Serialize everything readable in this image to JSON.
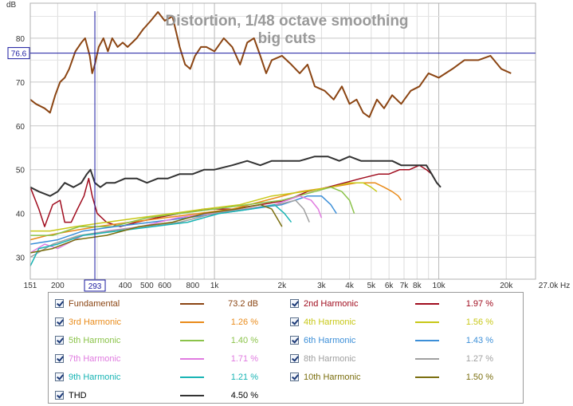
{
  "chart_data": {
    "type": "line",
    "title": "Distortion, 1/48 octave smoothing",
    "subtitle": "big cuts",
    "ylabel": "dB",
    "x_unit": "Hz",
    "x_scale": "log",
    "xlim": [
      151,
      27000
    ],
    "ylim": [
      25,
      88
    ],
    "grid": true,
    "x_ticks": [
      {
        "v": 151,
        "label": "151"
      },
      {
        "v": 200,
        "label": "200"
      },
      {
        "v": 293,
        "label": "293"
      },
      {
        "v": 400,
        "label": "400"
      },
      {
        "v": 500,
        "label": "500"
      },
      {
        "v": 600,
        "label": "600"
      },
      {
        "v": 800,
        "label": "800"
      },
      {
        "v": 1000,
        "label": "1k"
      },
      {
        "v": 2000,
        "label": "2k"
      },
      {
        "v": 3000,
        "label": "3k"
      },
      {
        "v": 4000,
        "label": "4k"
      },
      {
        "v": 5000,
        "label": "5k"
      },
      {
        "v": 6000,
        "label": "6k"
      },
      {
        "v": 7000,
        "label": "7k"
      },
      {
        "v": 8000,
        "label": "8k"
      },
      {
        "v": 10000,
        "label": "10k"
      },
      {
        "v": 20000,
        "label": "20k"
      },
      {
        "v": 27000,
        "label": "27.0k"
      }
    ],
    "y_ticks": [
      30,
      40,
      50,
      60,
      70,
      80
    ],
    "cursor": {
      "x": 293,
      "y": 76.6,
      "x_label": "293",
      "y_label": "76.6"
    },
    "series": [
      {
        "name": "Fundamental",
        "color": "#8b4513",
        "value": "73.2 dB",
        "points": [
          [
            151,
            66
          ],
          [
            160,
            65
          ],
          [
            175,
            64
          ],
          [
            185,
            63
          ],
          [
            195,
            67
          ],
          [
            205,
            70
          ],
          [
            215,
            71
          ],
          [
            225,
            73
          ],
          [
            240,
            77
          ],
          [
            255,
            79
          ],
          [
            265,
            80
          ],
          [
            278,
            76
          ],
          [
            285,
            72
          ],
          [
            293,
            74
          ],
          [
            305,
            78
          ],
          [
            320,
            80
          ],
          [
            335,
            77
          ],
          [
            350,
            80
          ],
          [
            370,
            78
          ],
          [
            390,
            79
          ],
          [
            410,
            78
          ],
          [
            430,
            79
          ],
          [
            450,
            80
          ],
          [
            480,
            82
          ],
          [
            520,
            84
          ],
          [
            560,
            86
          ],
          [
            600,
            84
          ],
          [
            650,
            85
          ],
          [
            700,
            78
          ],
          [
            740,
            74
          ],
          [
            780,
            73
          ],
          [
            820,
            76
          ],
          [
            870,
            78
          ],
          [
            920,
            78
          ],
          [
            1000,
            77
          ],
          [
            1100,
            80
          ],
          [
            1200,
            78
          ],
          [
            1300,
            74
          ],
          [
            1400,
            79
          ],
          [
            1500,
            80
          ],
          [
            1600,
            76
          ],
          [
            1700,
            72
          ],
          [
            1800,
            75
          ],
          [
            2000,
            76
          ],
          [
            2200,
            74
          ],
          [
            2400,
            72
          ],
          [
            2600,
            74
          ],
          [
            2800,
            69
          ],
          [
            3100,
            68
          ],
          [
            3400,
            66
          ],
          [
            3700,
            69
          ],
          [
            4000,
            65
          ],
          [
            4300,
            66
          ],
          [
            4600,
            63
          ],
          [
            4900,
            62
          ],
          [
            5300,
            66
          ],
          [
            5700,
            64
          ],
          [
            6200,
            67
          ],
          [
            6800,
            65
          ],
          [
            7500,
            68
          ],
          [
            8200,
            69
          ],
          [
            9000,
            72
          ],
          [
            10000,
            71
          ],
          [
            11500,
            73
          ],
          [
            13000,
            75
          ],
          [
            15000,
            75
          ],
          [
            17000,
            76
          ],
          [
            19000,
            73
          ],
          [
            21000,
            72
          ]
        ]
      },
      {
        "name": "2nd Harmonic",
        "color": "#a00c1e",
        "value": "1.97 %",
        "points": [
          [
            151,
            46
          ],
          [
            165,
            41
          ],
          [
            175,
            37
          ],
          [
            190,
            42
          ],
          [
            205,
            43
          ],
          [
            215,
            38
          ],
          [
            230,
            38
          ],
          [
            245,
            41
          ],
          [
            262,
            44
          ],
          [
            275,
            48
          ],
          [
            285,
            44
          ],
          [
            300,
            40
          ],
          [
            330,
            38
          ],
          [
            380,
            37
          ],
          [
            450,
            38
          ],
          [
            550,
            39
          ],
          [
            700,
            40
          ],
          [
            900,
            41
          ],
          [
            1200,
            41
          ],
          [
            1600,
            42
          ],
          [
            2100,
            43
          ],
          [
            2600,
            45
          ],
          [
            3200,
            46
          ],
          [
            3800,
            47
          ],
          [
            4500,
            48
          ],
          [
            5400,
            49
          ],
          [
            6000,
            49
          ],
          [
            6700,
            50
          ],
          [
            7400,
            50
          ],
          [
            8200,
            51
          ],
          [
            8800,
            50
          ],
          [
            9300,
            49
          ]
        ]
      },
      {
        "name": "3rd Harmonic",
        "color": "#e98b1a",
        "value": "1.26 %",
        "points": [
          [
            151,
            34
          ],
          [
            180,
            35
          ],
          [
            230,
            36
          ],
          [
            300,
            37
          ],
          [
            420,
            38
          ],
          [
            600,
            39
          ],
          [
            850,
            40
          ],
          [
            1200,
            41
          ],
          [
            1700,
            43
          ],
          [
            2400,
            45
          ],
          [
            3300,
            46
          ],
          [
            4300,
            47
          ],
          [
            5200,
            47
          ],
          [
            5700,
            46
          ],
          [
            6200,
            45
          ],
          [
            6600,
            44
          ],
          [
            6800,
            43
          ]
        ]
      },
      {
        "name": "4th Harmonic",
        "color": "#c8c818",
        "value": "1.56 %",
        "points": [
          [
            151,
            36
          ],
          [
            185,
            36
          ],
          [
            240,
            37
          ],
          [
            330,
            38
          ],
          [
            460,
            39
          ],
          [
            650,
            40
          ],
          [
            900,
            41
          ],
          [
            1300,
            42
          ],
          [
            1800,
            44
          ],
          [
            2500,
            45
          ],
          [
            3300,
            46
          ],
          [
            4000,
            47
          ],
          [
            4600,
            47
          ],
          [
            5000,
            46
          ],
          [
            5300,
            45
          ]
        ]
      },
      {
        "name": "5th Harmonic",
        "color": "#8bc34a",
        "value": "1.40 %",
        "points": [
          [
            151,
            35
          ],
          [
            190,
            35
          ],
          [
            250,
            37
          ],
          [
            350,
            37
          ],
          [
            500,
            39
          ],
          [
            700,
            40
          ],
          [
            1000,
            41
          ],
          [
            1400,
            42
          ],
          [
            2000,
            43
          ],
          [
            2800,
            45
          ],
          [
            3300,
            46
          ],
          [
            3700,
            45
          ],
          [
            4000,
            43
          ],
          [
            4200,
            40
          ]
        ]
      },
      {
        "name": "6th Harmonic",
        "color": "#3c8fd8",
        "value": "1.43 %",
        "points": [
          [
            151,
            33
          ],
          [
            200,
            34
          ],
          [
            260,
            36
          ],
          [
            360,
            37
          ],
          [
            520,
            38
          ],
          [
            750,
            39
          ],
          [
            1050,
            40
          ],
          [
            1450,
            41
          ],
          [
            2000,
            42
          ],
          [
            2600,
            44
          ],
          [
            3000,
            44
          ],
          [
            3300,
            42
          ],
          [
            3500,
            40
          ]
        ]
      },
      {
        "name": "7th Harmonic",
        "color": "#e07be0",
        "value": "1.71 %",
        "points": [
          [
            151,
            31
          ],
          [
            175,
            33
          ],
          [
            200,
            32
          ],
          [
            260,
            35
          ],
          [
            330,
            36
          ],
          [
            470,
            37
          ],
          [
            680,
            39
          ],
          [
            950,
            40
          ],
          [
            1350,
            41
          ],
          [
            1850,
            42
          ],
          [
            2400,
            44
          ],
          [
            2700,
            43
          ],
          [
            2900,
            41
          ],
          [
            3000,
            39
          ]
        ]
      },
      {
        "name": "8th Harmonic",
        "color": "#a0a0a0",
        "value": "1.27 %",
        "points": [
          [
            151,
            30
          ],
          [
            190,
            33
          ],
          [
            250,
            35
          ],
          [
            340,
            36
          ],
          [
            480,
            37
          ],
          [
            700,
            38
          ],
          [
            1000,
            40
          ],
          [
            1400,
            41
          ],
          [
            1900,
            42
          ],
          [
            2300,
            43
          ],
          [
            2500,
            41
          ],
          [
            2650,
            38
          ]
        ]
      },
      {
        "name": "9th Harmonic",
        "color": "#18b4b4",
        "value": "1.21 %",
        "points": [
          [
            151,
            28
          ],
          [
            165,
            32
          ],
          [
            200,
            33
          ],
          [
            260,
            35
          ],
          [
            370,
            36
          ],
          [
            530,
            37
          ],
          [
            760,
            38
          ],
          [
            1050,
            40
          ],
          [
            1450,
            41
          ],
          [
            1850,
            42
          ],
          [
            2050,
            40
          ],
          [
            2200,
            38
          ]
        ]
      },
      {
        "name": "10th Harmonic",
        "color": "#7a6e0e",
        "value": "1.50 %",
        "points": [
          [
            151,
            31
          ],
          [
            190,
            32
          ],
          [
            240,
            34
          ],
          [
            330,
            35
          ],
          [
            460,
            37
          ],
          [
            650,
            38
          ],
          [
            900,
            40
          ],
          [
            1250,
            41
          ],
          [
            1600,
            42
          ],
          [
            1800,
            41
          ],
          [
            1950,
            38
          ],
          [
            2000,
            37
          ]
        ]
      },
      {
        "name": "THD",
        "color": "#333333",
        "value": "4.50 %",
        "points": [
          [
            151,
            46
          ],
          [
            165,
            45
          ],
          [
            185,
            44
          ],
          [
            200,
            45
          ],
          [
            215,
            47
          ],
          [
            235,
            46
          ],
          [
            255,
            47
          ],
          [
            270,
            49
          ],
          [
            280,
            50
          ],
          [
            293,
            47
          ],
          [
            310,
            46
          ],
          [
            330,
            47
          ],
          [
            360,
            47
          ],
          [
            400,
            48
          ],
          [
            450,
            48
          ],
          [
            500,
            47
          ],
          [
            560,
            48
          ],
          [
            620,
            48
          ],
          [
            700,
            49
          ],
          [
            800,
            49
          ],
          [
            900,
            50
          ],
          [
            1000,
            50
          ],
          [
            1200,
            51
          ],
          [
            1400,
            52
          ],
          [
            1600,
            51
          ],
          [
            1800,
            52
          ],
          [
            2000,
            52
          ],
          [
            2400,
            52
          ],
          [
            2800,
            53
          ],
          [
            3200,
            53
          ],
          [
            3600,
            52
          ],
          [
            4000,
            53
          ],
          [
            4500,
            52
          ],
          [
            5000,
            52
          ],
          [
            5600,
            52
          ],
          [
            6200,
            52
          ],
          [
            6800,
            51
          ],
          [
            7500,
            51
          ],
          [
            8200,
            51
          ],
          [
            8800,
            51
          ],
          [
            9300,
            49
          ],
          [
            9800,
            47
          ],
          [
            10200,
            46
          ]
        ]
      }
    ]
  }
}
